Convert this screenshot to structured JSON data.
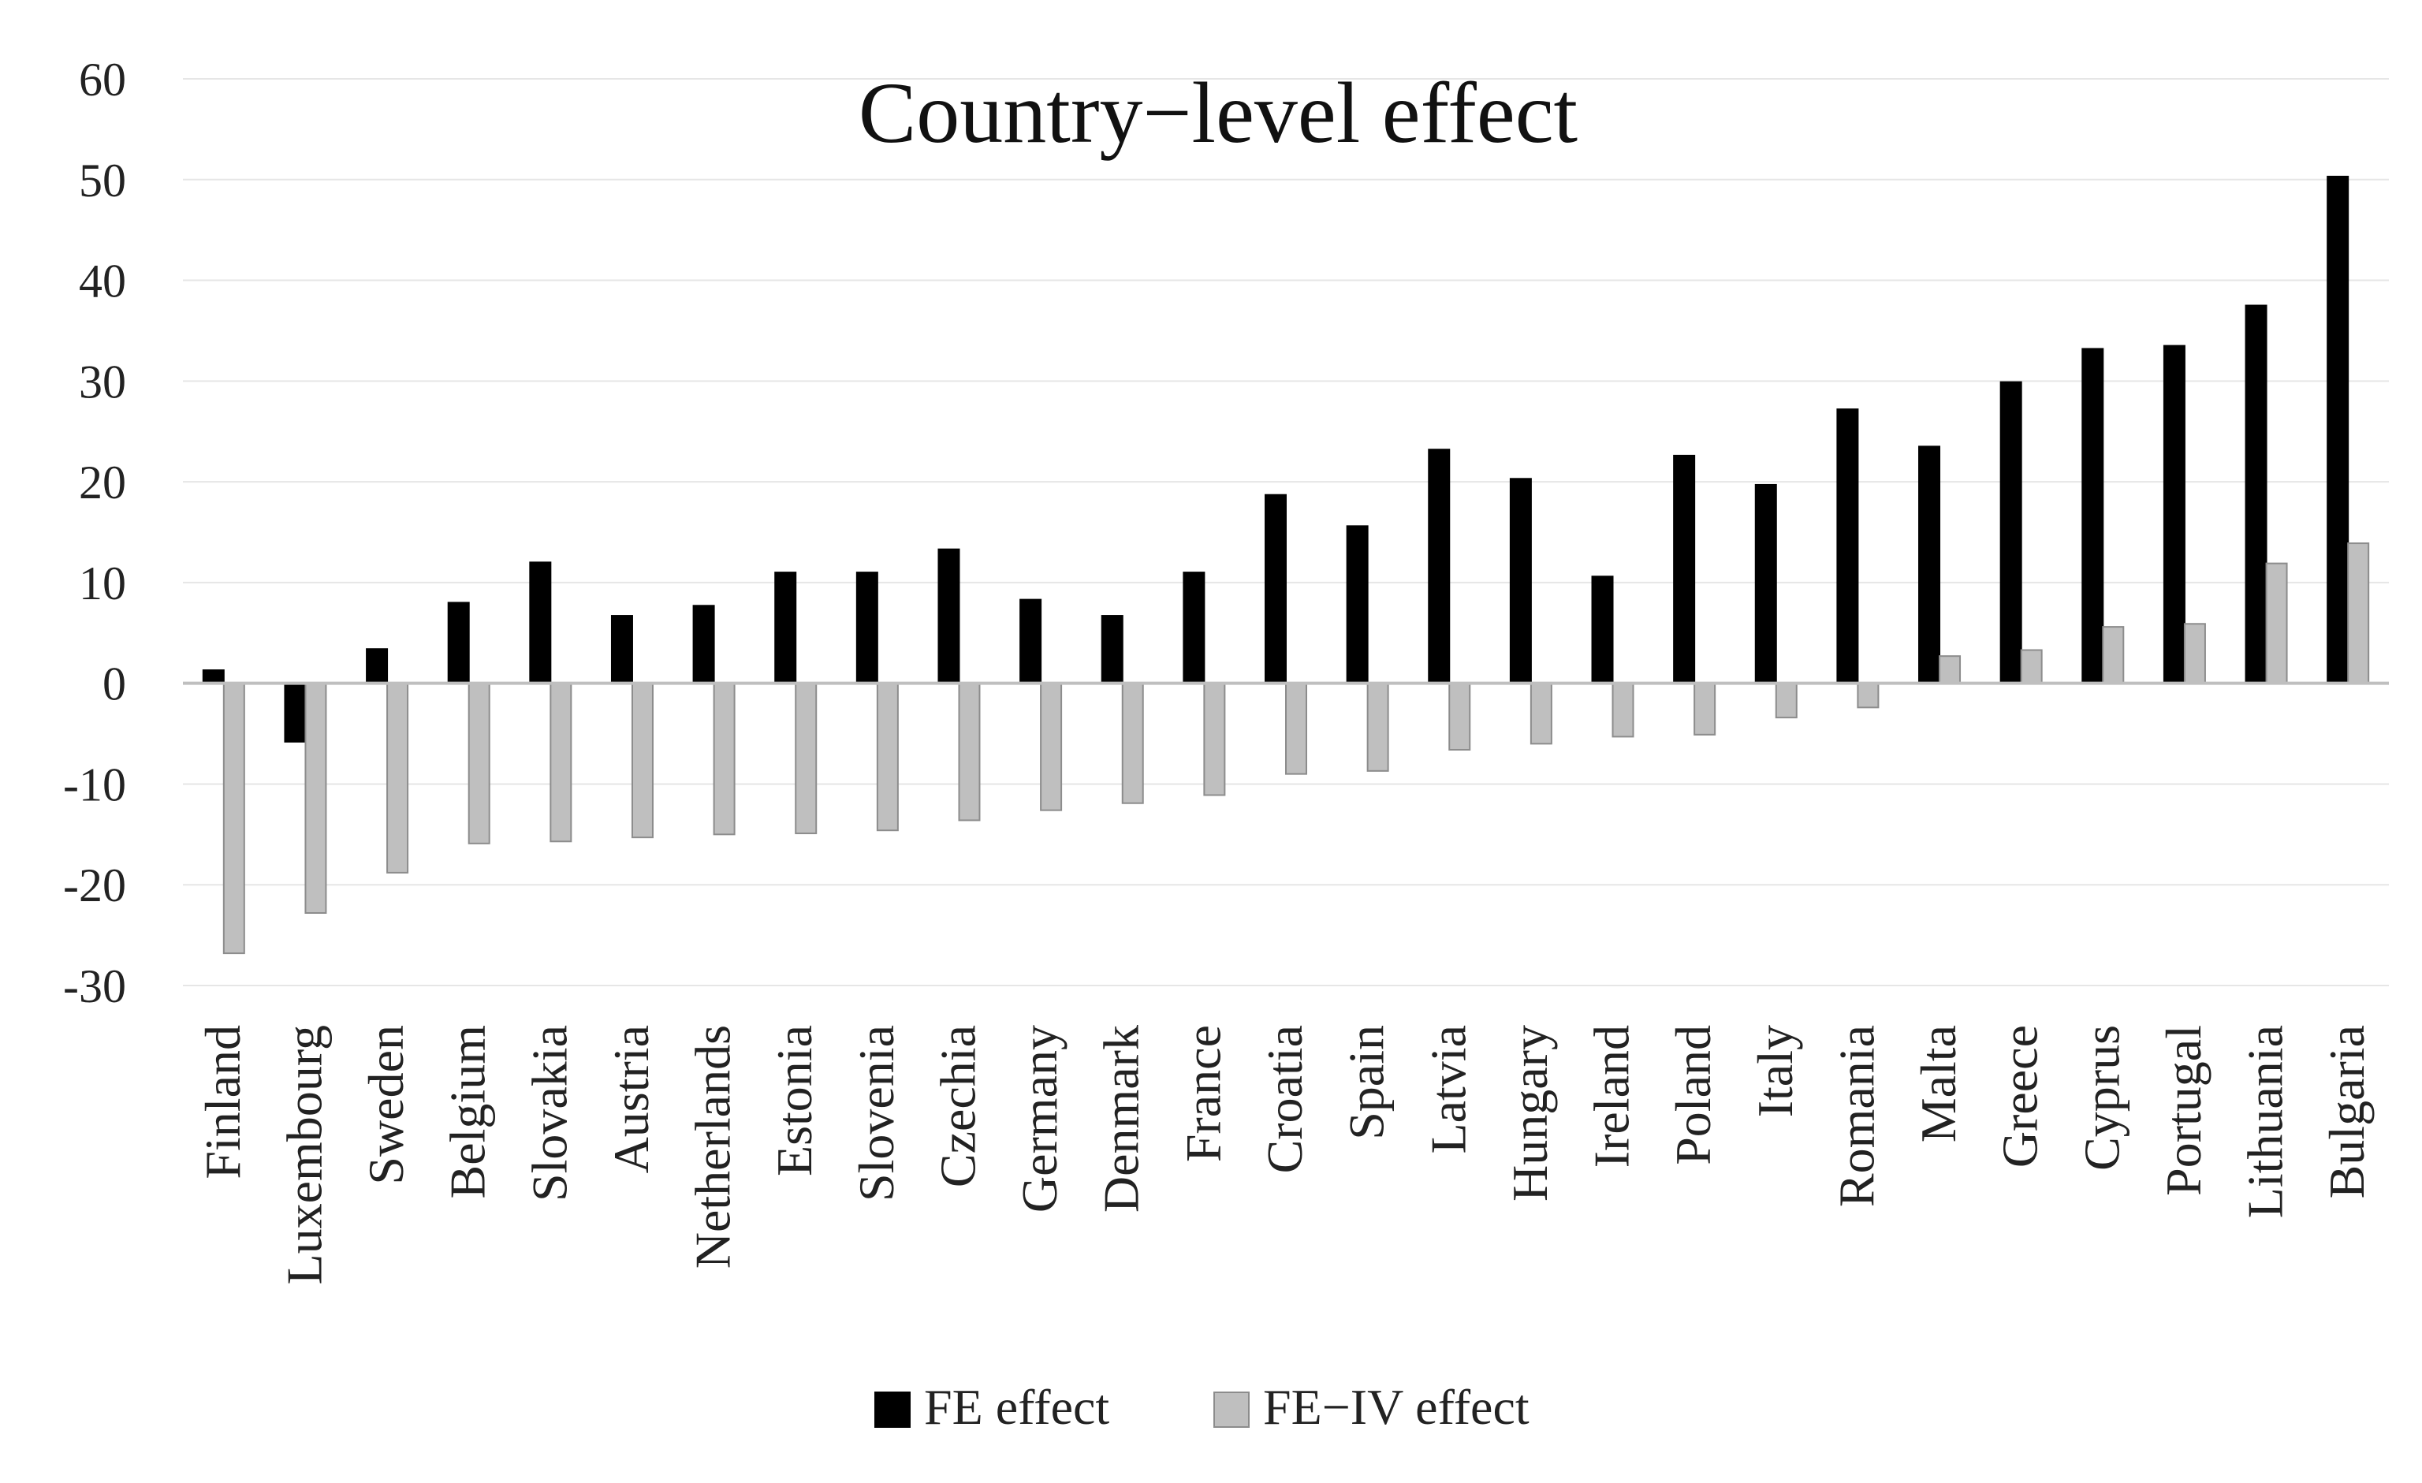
{
  "chart_data": {
    "type": "bar",
    "title": "Country−level effect",
    "xlabel": "",
    "ylabel": "",
    "ylim": [
      -30,
      60
    ],
    "yticks": [
      60,
      50,
      40,
      30,
      20,
      10,
      0,
      -10,
      -20,
      -30
    ],
    "ytick_labels": [
      "60",
      "50",
      "40",
      "30",
      "20",
      "10",
      "0",
      "-10",
      "-20",
      "-30"
    ],
    "grid": true,
    "legend_position": "bottom",
    "categories": [
      "Finland",
      "Luxembourg",
      "Sweden",
      "Belgium",
      "Slovakia",
      "Austria",
      "Netherlands",
      "Estonia",
      "Slovenia",
      "Czechia",
      "Germany",
      "Denmark",
      "France",
      "Croatia",
      "Spain",
      "Latvia",
      "Hungary",
      "Ireland",
      "Poland",
      "Italy",
      "Romania",
      "Malta",
      "Greece",
      "Cyprus",
      "Portugal",
      "Lithuania",
      "Bulgaria"
    ],
    "series": [
      {
        "name": "FE effect",
        "color": "#000000",
        "values": [
          1.3,
          -5.8,
          3.4,
          8.0,
          12.0,
          6.7,
          7.7,
          11.0,
          11.0,
          13.3,
          8.3,
          6.7,
          11.0,
          18.7,
          15.6,
          23.2,
          20.3,
          10.6,
          22.6,
          19.7,
          27.2,
          23.5,
          29.9,
          33.2,
          33.5,
          37.5,
          50.3
        ]
      },
      {
        "name": "FE−IV effect",
        "color": "#bfbfbf",
        "values": [
          -26.8,
          -22.8,
          -18.8,
          -15.9,
          -15.7,
          -15.3,
          -15.0,
          -14.9,
          -14.6,
          -13.6,
          -12.6,
          -11.9,
          -11.1,
          -9.0,
          -8.7,
          -6.6,
          -6.0,
          -5.3,
          -5.1,
          -3.4,
          -2.4,
          2.7,
          3.3,
          5.6,
          5.9,
          11.9,
          13.9
        ]
      }
    ]
  }
}
